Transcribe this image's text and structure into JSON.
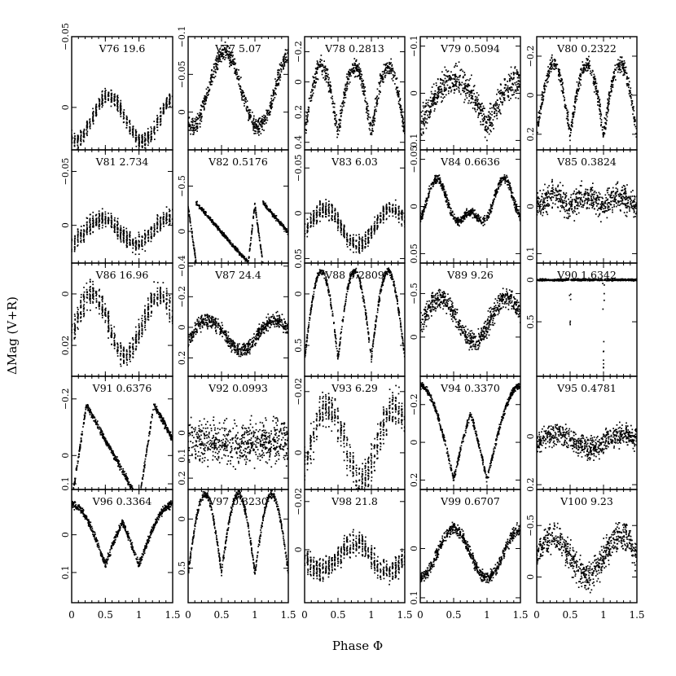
{
  "figure": {
    "xlabel": "Phase Φ",
    "ylabel": "ΔMag (V+R)"
  },
  "chart_data": {
    "type": "scatter",
    "layout": "5x5 grid of phased light curves",
    "xlabel": "Phase Φ",
    "ylabel": "ΔMag (V+R)",
    "xlim": [
      0,
      1.5
    ],
    "xticks": [
      "0",
      "0.5",
      "1",
      "1.5"
    ],
    "yaxis_inverted": true,
    "panels": [
      {
        "id": "V76",
        "label": "V76 19.6",
        "shape": "sin",
        "mean": 0.008,
        "amp": 0.016,
        "noise": 0.005,
        "peaks": [
          0.55,
          1.55
        ],
        "ylim": [
          -0.05,
          0.03
        ],
        "yticks": [
          -0.05,
          0
        ],
        "yticklabels": [
          "−0.05",
          "0"
        ]
      },
      {
        "id": "V77",
        "label": "V77 5.07",
        "shape": "sin",
        "mean": -0.03,
        "amp": 0.05,
        "noise": 0.01,
        "peaks": [
          0.55,
          1.55
        ],
        "ylim": [
          -0.1,
          0.05
        ],
        "yticks": [
          -0.1,
          -0.05,
          0
        ],
        "yticklabels": [
          "−0.1",
          "−0.05",
          "0"
        ]
      },
      {
        "id": "V78",
        "label": "V78 0.2813",
        "shape": "ecl",
        "mean": 0.12,
        "amp": 0.22,
        "noise": 0.05,
        "minima": [
          0,
          0.5,
          1,
          1.5
        ],
        "ylim": [
          -0.3,
          0.45
        ],
        "yticks": [
          -0.2,
          0,
          0.2,
          0.4
        ],
        "yticklabels": [
          "−0.2",
          "0",
          "0.2",
          "0.4"
        ]
      },
      {
        "id": "V79",
        "label": "V79 0.5094",
        "shape": "ecl",
        "mean": 0.02,
        "amp": 0.05,
        "noise": 0.025,
        "minima": [
          0,
          1
        ],
        "ylim": [
          -0.12,
          0.12
        ],
        "yticks": [
          -0.1,
          0,
          0.1
        ],
        "yticklabels": [
          "−0.1",
          "0",
          "0.1"
        ]
      },
      {
        "id": "V80",
        "label": "V80 0.2322",
        "shape": "ecl",
        "mean": 0.02,
        "amp": 0.18,
        "noise": 0.035,
        "minima": [
          0,
          0.5,
          1,
          1.5
        ],
        "ylim": [
          -0.3,
          0.28
        ],
        "yticks": [
          -0.2,
          0,
          0.2
        ],
        "yticklabels": [
          "−0.2",
          "0",
          "0.2"
        ]
      },
      {
        "id": "V81",
        "label": "V81 2.734",
        "shape": "sin",
        "mean": 0.005,
        "amp": 0.012,
        "noise": 0.007,
        "peaks": [
          0.45,
          1.45
        ],
        "ylim": [
          -0.07,
          0.035
        ],
        "yticks": [
          -0.05,
          0
        ],
        "yticklabels": [
          "−0.05",
          "0"
        ]
      },
      {
        "id": "V82",
        "label": "V82 0.5176",
        "shape": "saw",
        "mean": 0,
        "amp": 0.35,
        "noise": 0.02,
        "ylim": [
          -0.9,
          0.35
        ],
        "yticks": [
          -0.5,
          0
        ],
        "yticklabels": [
          "−0.5",
          "0"
        ]
      },
      {
        "id": "V83",
        "label": "V83 6.03",
        "shape": "sin",
        "mean": 0.015,
        "amp": 0.02,
        "noise": 0.008,
        "peaks": [
          0.3,
          1.3
        ],
        "ylim": [
          -0.07,
          0.055
        ],
        "yticks": [
          -0.05,
          0,
          0.05
        ],
        "yticklabels": [
          "−0.05",
          "0",
          "0.05"
        ]
      },
      {
        "id": "V84",
        "label": "V84 0.6636",
        "shape": "bi",
        "mean": 0.0,
        "amp": 0.03,
        "noise": 0.004,
        "ylim": [
          -0.06,
          0.06
        ],
        "yticks": [
          -0.05,
          0,
          0.05
        ],
        "yticklabels": [
          "−0.05",
          "0",
          "0.05"
        ]
      },
      {
        "id": "V85",
        "label": "V85 0.3824",
        "shape": "sin",
        "mean": 0.0,
        "amp": 0.02,
        "noise": 0.025,
        "peaks": [
          0.25,
          0.75,
          1.25
        ],
        "ylim": [
          -0.12,
          0.12
        ],
        "yticks": [
          0,
          0.1
        ],
        "yticklabels": [
          "0",
          "0.1"
        ]
      },
      {
        "id": "V86",
        "label": "V86 16.96",
        "shape": "sin",
        "mean": 0.012,
        "amp": 0.012,
        "noise": 0.004,
        "peaks": [
          0.3,
          1.3
        ],
        "ylim": [
          -0.012,
          0.032
        ],
        "yticks": [
          0,
          0.02
        ],
        "yticklabels": [
          "0",
          "0.02"
        ]
      },
      {
        "id": "V87",
        "label": "V87 24.4",
        "shape": "sin",
        "mean": 0.05,
        "amp": 0.1,
        "noise": 0.04,
        "peaks": [
          0.3,
          1.3
        ],
        "ylim": [
          -0.42,
          0.32
        ],
        "yticks": [
          -0.4,
          -0.2,
          0,
          0.2
        ],
        "yticklabels": [
          "−0.4",
          "−0.2",
          "0",
          "0.2"
        ]
      },
      {
        "id": "V88",
        "label": "V88 0.2809",
        "shape": "ecl",
        "mean": 0.2,
        "amp": 0.42,
        "noise": 0.03,
        "minima": [
          0,
          0.5,
          1,
          1.5
        ],
        "ylim": [
          -0.3,
          0.8
        ],
        "yticks": [
          0,
          0.5
        ],
        "yticklabels": [
          "0",
          "0.5"
        ]
      },
      {
        "id": "V89",
        "label": "V89 9.26",
        "shape": "sin",
        "mean": -0.2,
        "amp": 0.25,
        "noise": 0.1,
        "peaks": [
          0.3,
          1.3
        ],
        "ylim": [
          -0.85,
          0.45
        ],
        "yticks": [
          -0.5,
          0
        ],
        "yticklabels": [
          "−0.5",
          "0"
        ]
      },
      {
        "id": "V90",
        "label": "V90 1.6342",
        "shape": "flat",
        "mean": 0.0,
        "noise": 0.01,
        "dips": [
          0.5,
          1.0
        ],
        "dipdepth": [
          0.6,
          1.1
        ],
        "ylim": [
          -0.2,
          1.15
        ],
        "yticks": [
          0,
          0.5
        ],
        "yticklabels": [
          "0",
          "0.5"
        ]
      },
      {
        "id": "V91",
        "label": "V91 0.6376",
        "shape": "saw2",
        "mean": 0,
        "amp": 0.18,
        "noise": 0.01,
        "ylim": [
          -0.28,
          0.12
        ],
        "yticks": [
          -0.2,
          0,
          0.1
        ],
        "yticklabels": [
          "−0.2",
          "0",
          "0.1"
        ]
      },
      {
        "id": "V92",
        "label": "V92 0.0993",
        "shape": "noise",
        "mean": 0.04,
        "amp": 0,
        "noise": 0.08,
        "ylim": [
          -0.25,
          0.25
        ],
        "yticks": [
          0,
          0.1,
          0.2
        ],
        "yticklabels": [
          "0",
          "0.1",
          "0.2"
        ]
      },
      {
        "id": "V93",
        "label": "V93 6.29",
        "shape": "sin",
        "mean": -0.003,
        "amp": 0.012,
        "noise": 0.005,
        "peaks": [
          0.35,
          1.35
        ],
        "ylim": [
          -0.025,
          0.012
        ],
        "yticks": [
          -0.02,
          0
        ],
        "yticklabels": [
          "−0.02",
          "0"
        ]
      },
      {
        "id": "V94",
        "label": "V94 0.3370",
        "shape": "ecl",
        "mean": -0.05,
        "amp": 0.25,
        "noise": 0.015,
        "minima": [
          0.5,
          1.0
        ],
        "ylim": [
          -0.35,
          0.25
        ],
        "yticks": [
          -0.2,
          0,
          0.2
        ],
        "yticklabels": [
          "−0.2",
          "0",
          "0.2"
        ]
      },
      {
        "id": "V95",
        "label": "V95 0.4781",
        "shape": "sin",
        "mean": 0.02,
        "amp": 0.03,
        "noise": 0.04,
        "peaks": [
          0.3,
          1.3
        ],
        "ylim": [
          -0.25,
          0.22
        ],
        "yticks": [
          0,
          0.2
        ],
        "yticklabels": [
          "0",
          "0.2"
        ]
      },
      {
        "id": "V96",
        "label": "V96 0.3364",
        "shape": "ecl",
        "mean": 0.0,
        "amp": 0.08,
        "noise": 0.008,
        "minima": [
          0.5,
          1.0
        ],
        "ylim": [
          -0.12,
          0.18
        ],
        "yticks": [
          0,
          0.1
        ],
        "yticklabels": [
          "0",
          "0.1"
        ]
      },
      {
        "id": "V97",
        "label": "V97 0.3230",
        "shape": "ecl",
        "mean": 0.15,
        "amp": 0.4,
        "noise": 0.03,
        "minima": [
          0,
          0.5,
          1.0,
          1.5
        ],
        "ylim": [
          -0.3,
          0.85
        ],
        "yticks": [
          0,
          0.5
        ],
        "yticklabels": [
          "0",
          "0.5"
        ]
      },
      {
        "id": "V98",
        "label": "V98 21.8",
        "shape": "sin",
        "mean": 0.003,
        "amp": 0.006,
        "noise": 0.004,
        "peaks": [
          0.75,
          1.75
        ],
        "ylim": [
          -0.025,
          0.022
        ],
        "yticks": [
          -0.02,
          0
        ],
        "yticklabels": [
          "−0.02",
          "0"
        ]
      },
      {
        "id": "V99",
        "label": "V99 0.6707",
        "shape": "sin",
        "mean": 0.01,
        "amp": 0.05,
        "noise": 0.01,
        "peaks": [
          0.5,
          1.5
        ],
        "ylim": [
          -0.12,
          0.11
        ],
        "yticks": [
          0,
          0.1
        ],
        "yticklabels": [
          "0",
          "0.1"
        ]
      },
      {
        "id": "V100",
        "label": "V100 9.23",
        "shape": "sin",
        "mean": -0.2,
        "amp": 0.2,
        "noise": 0.12,
        "peaks": [
          0.25,
          1.25
        ],
        "ylim": [
          -0.85,
          0.25
        ],
        "yticks": [
          -0.5,
          0
        ],
        "yticklabels": [
          "−0.5",
          "0"
        ]
      }
    ]
  }
}
